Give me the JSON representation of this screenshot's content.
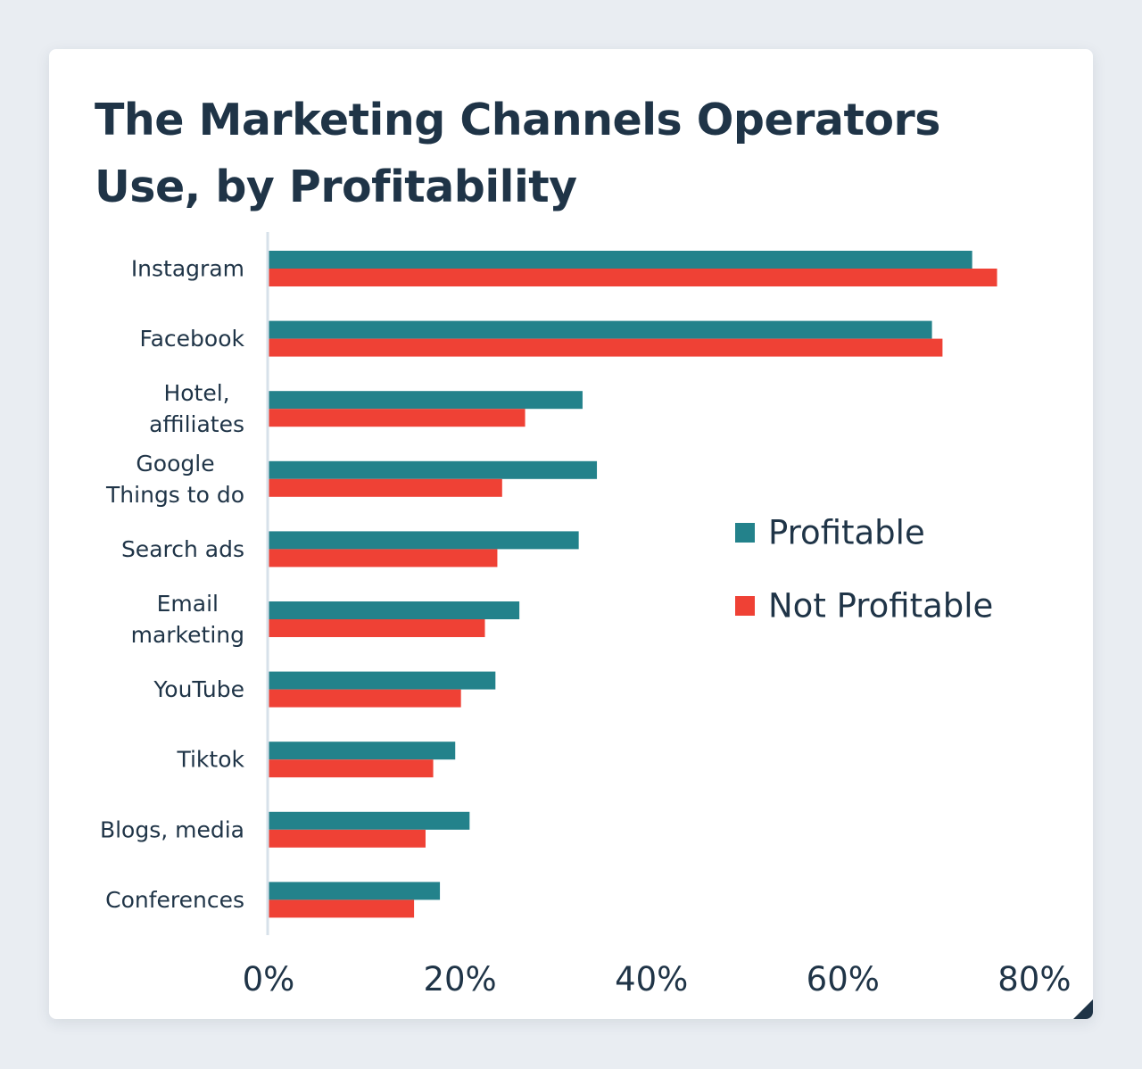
{
  "page": {
    "title": "The Marketing Channels Operators Use, by Profitability"
  },
  "colors": {
    "profitable": "#23828b",
    "not_profitable": "#ef4135",
    "text": "#1f3447",
    "axis": "#d7e1ea"
  },
  "chart_data": {
    "type": "bar",
    "orientation": "horizontal",
    "title": "The Marketing Channels Operators Use, by Profitability",
    "categories": [
      [
        "Instagram"
      ],
      [
        "Facebook"
      ],
      [
        "Hotel,",
        "affiliates"
      ],
      [
        "Google",
        "Things to do"
      ],
      [
        "Search ads"
      ],
      [
        "Email",
        "marketing"
      ],
      [
        "YouTube"
      ],
      [
        "Tiktok"
      ],
      [
        "Blogs, media"
      ],
      [
        "Conferences"
      ]
    ],
    "series": [
      {
        "name": "Profitable",
        "values": [
          73.5,
          69.3,
          32.8,
          34.3,
          32.4,
          26.2,
          23.7,
          19.5,
          21.0,
          17.9
        ]
      },
      {
        "name": "Not Profitable",
        "values": [
          76.1,
          70.4,
          26.8,
          24.4,
          23.9,
          22.6,
          20.1,
          17.2,
          16.4,
          15.2
        ]
      }
    ],
    "x_ticks": [
      "0%",
      "20%",
      "40%",
      "60%",
      "80%"
    ],
    "xlim": [
      0,
      80
    ],
    "ylabel": "",
    "xlabel": "",
    "legend_position": "right",
    "grid": false
  }
}
